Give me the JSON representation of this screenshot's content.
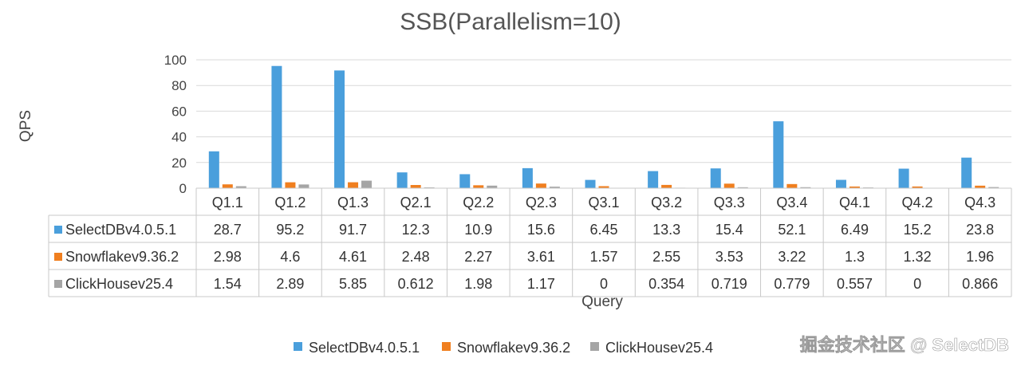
{
  "chart_data": {
    "type": "bar",
    "title": "SSB(Parallelism=10)",
    "xlabel": "Query",
    "ylabel": "QPS",
    "ylim": [
      0,
      100
    ],
    "yticks": [
      0,
      20,
      40,
      60,
      80,
      100
    ],
    "grid": true,
    "legend": "bottom",
    "categories": [
      "Q1.1",
      "Q1.2",
      "Q1.3",
      "Q2.1",
      "Q2.2",
      "Q2.3",
      "Q3.1",
      "Q3.2",
      "Q3.3",
      "Q3.4",
      "Q4.1",
      "Q4.2",
      "Q4.3"
    ],
    "series": [
      {
        "name": "SelectDBv4.0.5.1",
        "color": "#4a9fdc",
        "values": [
          28.7,
          95.2,
          91.7,
          12.3,
          10.9,
          15.6,
          6.45,
          13.3,
          15.4,
          52.1,
          6.49,
          15.2,
          23.8
        ],
        "labels": [
          "28.7",
          "95.2",
          "91.7",
          "12.3",
          "10.9",
          "15.6",
          "6.45",
          "13.3",
          "15.4",
          "52.1",
          "6.49",
          "15.2",
          "23.8"
        ]
      },
      {
        "name": "Snowflakev9.36.2",
        "color": "#f07f1f",
        "values": [
          2.98,
          4.6,
          4.61,
          2.48,
          2.27,
          3.61,
          1.57,
          2.55,
          3.53,
          3.22,
          1.3,
          1.32,
          1.96
        ],
        "labels": [
          "2.98",
          "4.6",
          "4.61",
          "2.48",
          "2.27",
          "3.61",
          "1.57",
          "2.55",
          "3.53",
          "3.22",
          "1.3",
          "1.32",
          "1.96"
        ]
      },
      {
        "name": "ClickHousev25.4",
        "color": "#a5a5a5",
        "values": [
          1.54,
          2.89,
          5.85,
          0.612,
          1.98,
          1.17,
          0,
          0.354,
          0.719,
          0.779,
          0.557,
          0,
          0.866
        ],
        "labels": [
          "1.54",
          "2.89",
          "5.85",
          "0.612",
          "1.98",
          "1.17",
          "0",
          "0.354",
          "0.719",
          "0.779",
          "0.557",
          "0",
          "0.866"
        ]
      }
    ]
  },
  "watermark": "掘金技术社区 @ SelectDB"
}
